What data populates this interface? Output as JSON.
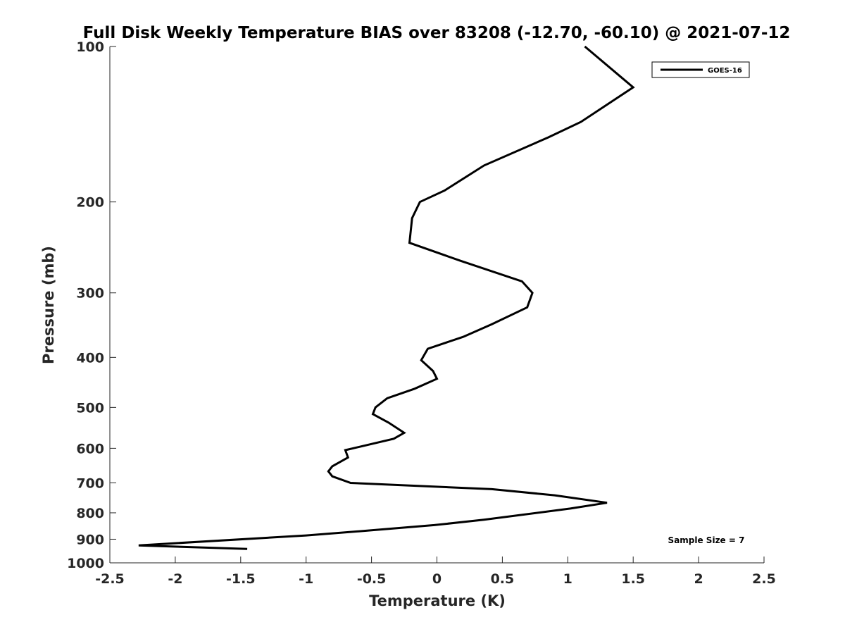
{
  "chart_data": {
    "type": "line",
    "title": "Full Disk Weekly Temperature BIAS over 83208 (-12.70, -60.10) @ 2021-07-12",
    "xlabel": "Temperature (K)",
    "ylabel": "Pressure (mb)",
    "xlim": [
      -2.5,
      2.5
    ],
    "ylim": [
      100,
      1000
    ],
    "y_scale": "log",
    "y_reversed": true,
    "x_ticks": [
      "-2.5",
      "-2",
      "-1.5",
      "-1",
      "-0.5",
      "0",
      "0.5",
      "1",
      "1.5",
      "2",
      "2.5"
    ],
    "x_tick_values": [
      -2.5,
      -2,
      -1.5,
      -1,
      -0.5,
      0,
      0.5,
      1,
      1.5,
      2,
      2.5
    ],
    "y_ticks": [
      "100",
      "200",
      "300",
      "400",
      "500",
      "600",
      "700",
      "800",
      "900",
      "1000"
    ],
    "y_tick_values": [
      100,
      200,
      300,
      400,
      500,
      600,
      700,
      800,
      900,
      1000
    ],
    "grid": false,
    "legend_position": "top-right",
    "annotation": "Sample Size = 7",
    "series": [
      {
        "name": "GOES-16",
        "color": "#000000",
        "points": [
          [
            1.13,
            100
          ],
          [
            1.5,
            120
          ],
          [
            1.1,
            140
          ],
          [
            0.85,
            150
          ],
          [
            0.36,
            170
          ],
          [
            0.06,
            190
          ],
          [
            -0.13,
            200
          ],
          [
            -0.19,
            215
          ],
          [
            -0.21,
            240
          ],
          [
            0.18,
            260
          ],
          [
            0.65,
            285
          ],
          [
            0.73,
            300
          ],
          [
            0.69,
            320
          ],
          [
            0.42,
            345
          ],
          [
            0.2,
            365
          ],
          [
            -0.07,
            385
          ],
          [
            -0.12,
            405
          ],
          [
            -0.03,
            425
          ],
          [
            0.0,
            440
          ],
          [
            -0.17,
            460
          ],
          [
            -0.38,
            480
          ],
          [
            -0.47,
            500
          ],
          [
            -0.49,
            515
          ],
          [
            -0.37,
            535
          ],
          [
            -0.25,
            560
          ],
          [
            -0.33,
            575
          ],
          [
            -0.7,
            605
          ],
          [
            -0.68,
            625
          ],
          [
            -0.8,
            650
          ],
          [
            -0.83,
            665
          ],
          [
            -0.8,
            680
          ],
          [
            -0.66,
            700
          ],
          [
            0.42,
            720
          ],
          [
            0.9,
            740
          ],
          [
            1.3,
            765
          ],
          [
            1.02,
            785
          ],
          [
            0.36,
            825
          ],
          [
            -0.02,
            845
          ],
          [
            -0.5,
            865
          ],
          [
            -1.0,
            885
          ],
          [
            -2.28,
            925
          ],
          [
            -1.45,
            940
          ]
        ]
      }
    ]
  }
}
